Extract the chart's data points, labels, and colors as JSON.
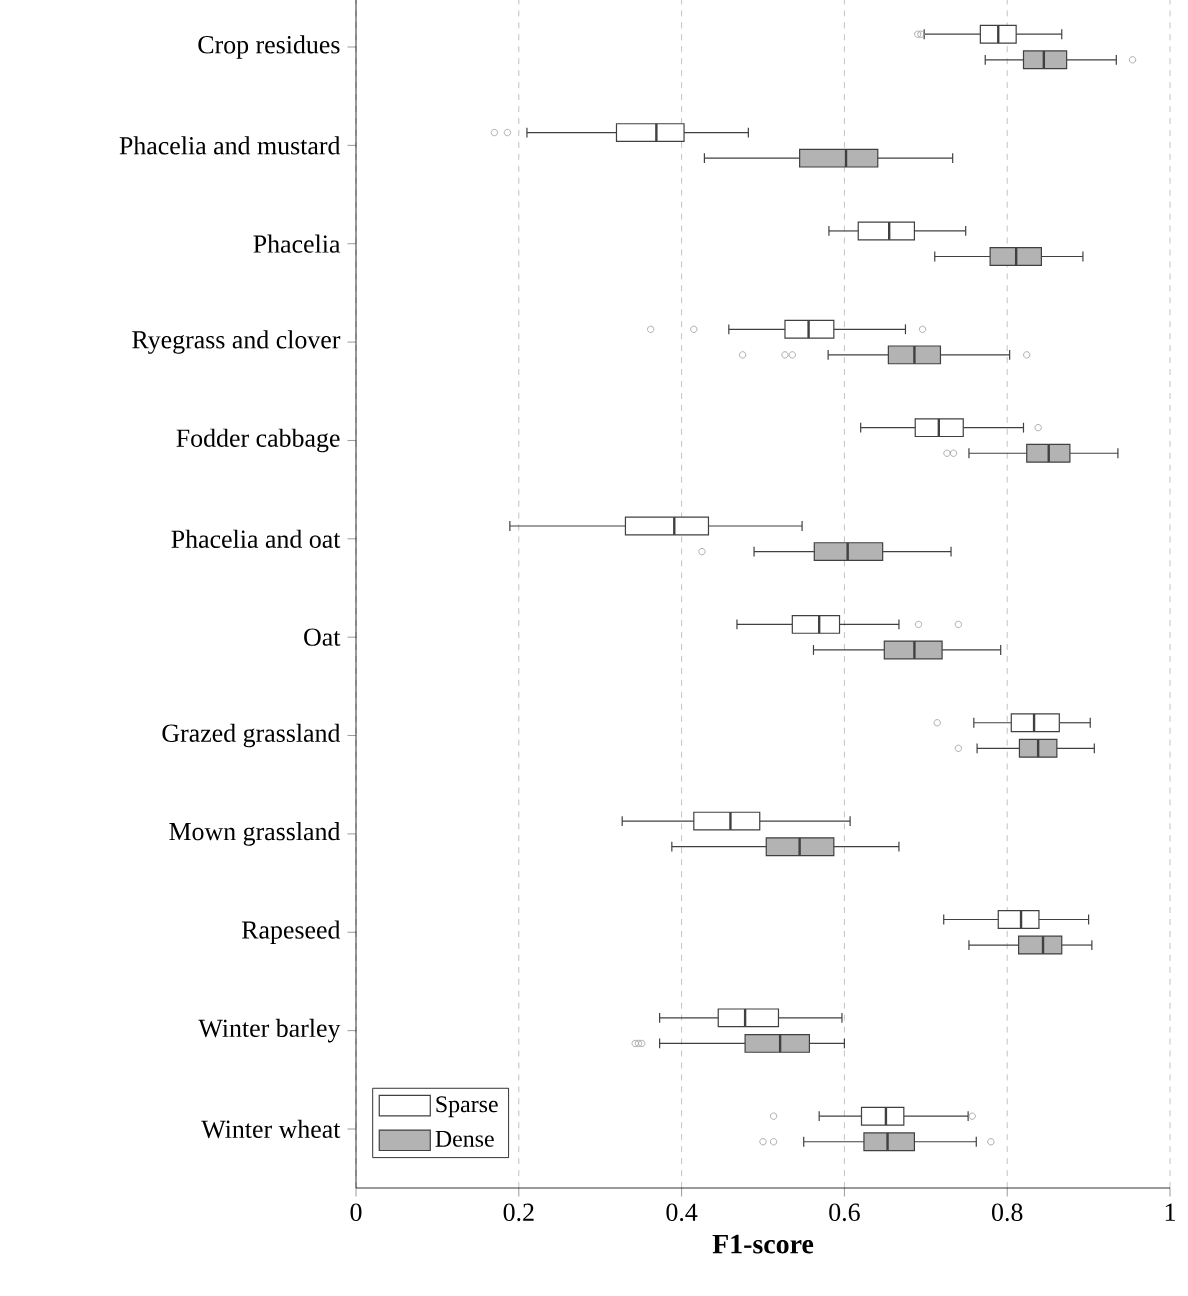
{
  "chart_data": {
    "type": "box",
    "orientation": "horizontal",
    "xlabel": "F1-score",
    "categories": [
      "Crop residues",
      "Phacelia and mustard",
      "Phacelia",
      "Ryegrass and clover",
      "Fodder cabbage",
      "Phacelia and oat",
      "Oat",
      "Grazed grassland",
      "Mown grassland",
      "Rapeseed",
      "Winter barley",
      "Winter wheat"
    ],
    "xlim": [
      0,
      1
    ],
    "xticks": [
      0,
      0.2,
      0.4,
      0.6,
      0.8,
      1
    ],
    "grid": "x",
    "legend": "bottom left",
    "series": [
      {
        "name": "Sparse",
        "color": "#ffffff",
        "boxes": [
          {
            "low": 0.698,
            "q1": 0.767,
            "median": 0.789,
            "q3": 0.811,
            "high": 0.867,
            "outliers": [
              0.69,
              0.694
            ]
          },
          {
            "low": 0.21,
            "q1": 0.32,
            "median": 0.369,
            "q3": 0.403,
            "high": 0.482,
            "outliers": [
              0.17,
              0.186
            ]
          },
          {
            "low": 0.581,
            "q1": 0.617,
            "median": 0.655,
            "q3": 0.686,
            "high": 0.749
          },
          {
            "low": 0.458,
            "q1": 0.527,
            "median": 0.556,
            "q3": 0.587,
            "high": 0.675,
            "outliers": [
              0.362,
              0.415,
              0.696
            ]
          },
          {
            "low": 0.62,
            "q1": 0.687,
            "median": 0.716,
            "q3": 0.746,
            "high": 0.82,
            "outliers": [
              0.838
            ]
          },
          {
            "low": 0.189,
            "q1": 0.331,
            "median": 0.391,
            "q3": 0.433,
            "high": 0.548
          },
          {
            "low": 0.468,
            "q1": 0.536,
            "median": 0.569,
            "q3": 0.594,
            "high": 0.667,
            "outliers": [
              0.691,
              0.74
            ]
          },
          {
            "low": 0.759,
            "q1": 0.805,
            "median": 0.833,
            "q3": 0.864,
            "high": 0.902,
            "outliers": [
              0.714
            ]
          },
          {
            "low": 0.327,
            "q1": 0.415,
            "median": 0.46,
            "q3": 0.496,
            "high": 0.607
          },
          {
            "low": 0.722,
            "q1": 0.789,
            "median": 0.817,
            "q3": 0.839,
            "high": 0.9
          },
          {
            "low": 0.373,
            "q1": 0.445,
            "median": 0.478,
            "q3": 0.519,
            "high": 0.597
          },
          {
            "low": 0.569,
            "q1": 0.621,
            "median": 0.651,
            "q3": 0.673,
            "high": 0.752,
            "outliers": [
              0.513,
              0.757
            ]
          }
        ]
      },
      {
        "name": "Dense",
        "color": "#b3b3b3",
        "boxes": [
          {
            "low": 0.773,
            "q1": 0.82,
            "median": 0.845,
            "q3": 0.873,
            "high": 0.934,
            "outliers": [
              0.954
            ]
          },
          {
            "low": 0.428,
            "q1": 0.545,
            "median": 0.602,
            "q3": 0.641,
            "high": 0.733
          },
          {
            "low": 0.711,
            "q1": 0.779,
            "median": 0.811,
            "q3": 0.842,
            "high": 0.893
          },
          {
            "low": 0.58,
            "q1": 0.654,
            "median": 0.686,
            "q3": 0.718,
            "high": 0.803,
            "outliers": [
              0.475,
              0.527,
              0.536,
              0.824
            ]
          },
          {
            "low": 0.753,
            "q1": 0.824,
            "median": 0.851,
            "q3": 0.877,
            "high": 0.936,
            "outliers": [
              0.726,
              0.734
            ]
          },
          {
            "low": 0.489,
            "q1": 0.563,
            "median": 0.604,
            "q3": 0.647,
            "high": 0.731,
            "outliers": [
              0.425
            ]
          },
          {
            "low": 0.562,
            "q1": 0.649,
            "median": 0.686,
            "q3": 0.72,
            "high": 0.792
          },
          {
            "low": 0.763,
            "q1": 0.815,
            "median": 0.838,
            "q3": 0.861,
            "high": 0.907,
            "outliers": [
              0.74
            ]
          },
          {
            "low": 0.388,
            "q1": 0.504,
            "median": 0.545,
            "q3": 0.587,
            "high": 0.667
          },
          {
            "low": 0.753,
            "q1": 0.814,
            "median": 0.844,
            "q3": 0.867,
            "high": 0.904
          },
          {
            "low": 0.373,
            "q1": 0.478,
            "median": 0.521,
            "q3": 0.557,
            "high": 0.6,
            "outliers": [
              0.343,
              0.347,
              0.351
            ]
          },
          {
            "low": 0.55,
            "q1": 0.624,
            "median": 0.653,
            "q3": 0.686,
            "high": 0.762,
            "outliers": [
              0.5,
              0.513,
              0.78
            ]
          }
        ]
      }
    ]
  }
}
